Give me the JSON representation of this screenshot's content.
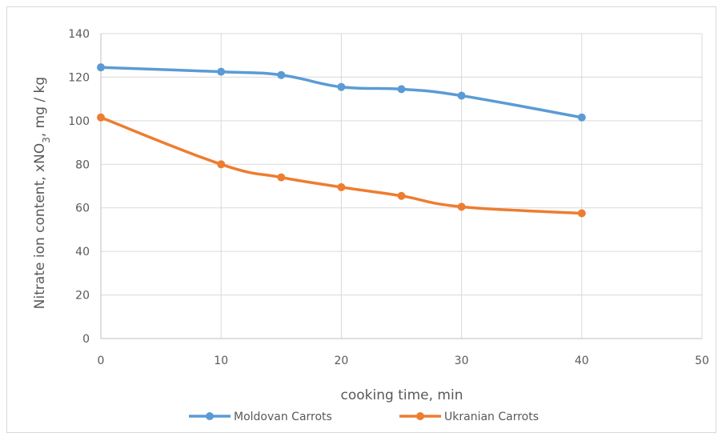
{
  "chart_data": {
    "type": "line",
    "title": "",
    "xlabel": "cooking time, min",
    "ylabel_prefix": "Nitrate ion content, xNO",
    "ylabel_subscript": "3",
    "ylabel_suffix": ", mg / kg",
    "xlim": [
      0,
      50
    ],
    "ylim": [
      0,
      140
    ],
    "xticks": [
      0,
      10,
      20,
      30,
      40,
      50
    ],
    "yticks": [
      0,
      20,
      40,
      60,
      80,
      100,
      120,
      140
    ],
    "grid": true,
    "legend_position": "bottom",
    "series": [
      {
        "name": "Moldovan Carrots",
        "color": "#5b9bd5",
        "x": [
          0,
          10,
          15,
          20,
          25,
          30,
          40
        ],
        "y": [
          124.5,
          122.5,
          121,
          115.5,
          114.5,
          111.5,
          101.5
        ]
      },
      {
        "name": "Ukranian Carrots",
        "color": "#ed7d31",
        "x": [
          0,
          10,
          15,
          20,
          25,
          30,
          40
        ],
        "y": [
          101.5,
          80,
          74,
          69.5,
          65.5,
          60.5,
          57.5
        ]
      }
    ]
  }
}
